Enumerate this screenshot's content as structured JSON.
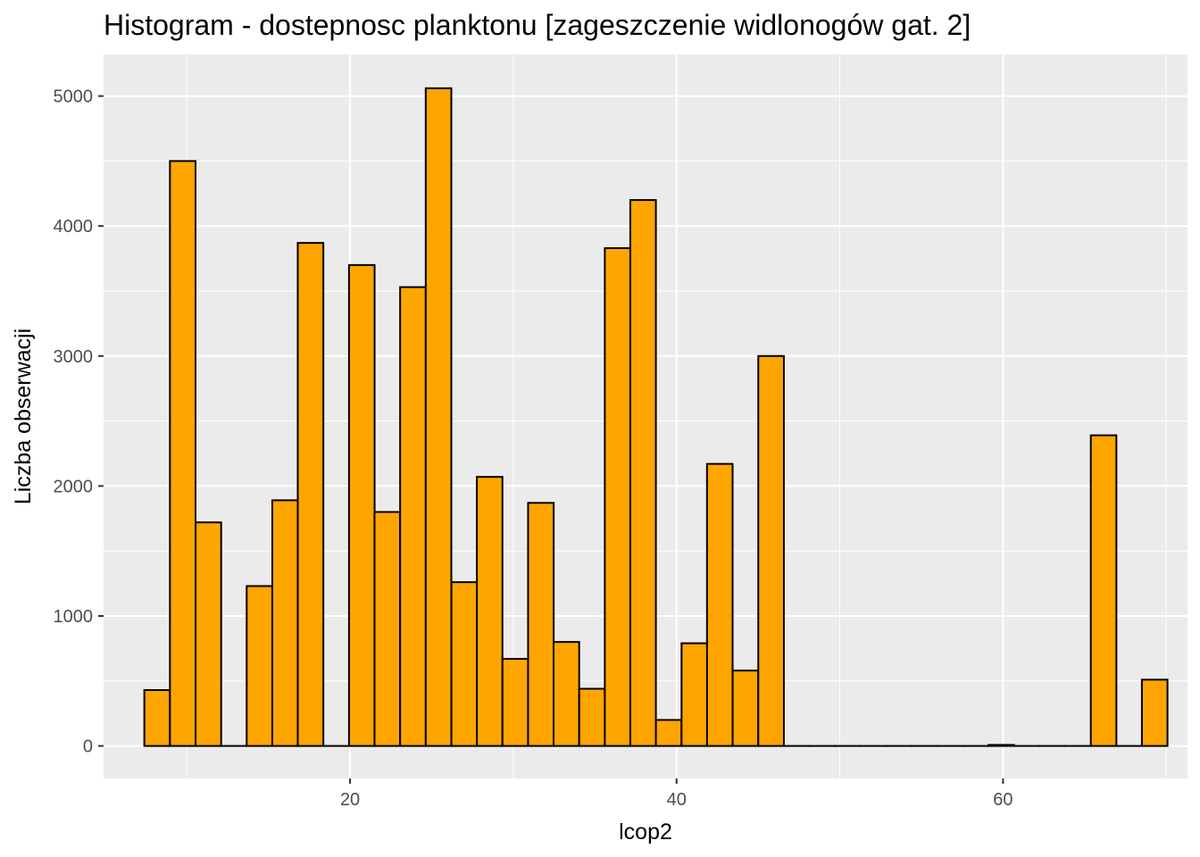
{
  "chart_data": {
    "type": "bar",
    "title": "Histogram - dostepnosc planktonu [zageszczenie widlonogów gat. 2]",
    "xlabel": "lcop2",
    "ylabel": "Liczba obserwacji",
    "xlim": [
      4.9,
      71.3
    ],
    "ylim": [
      -250,
      5320
    ],
    "x_ticks": [
      20,
      40,
      60
    ],
    "y_ticks": [
      0,
      1000,
      2000,
      3000,
      4000,
      5000
    ],
    "bin_width": 1.567,
    "bins": [
      {
        "x": 8.18,
        "count": 430
      },
      {
        "x": 9.75,
        "count": 4500
      },
      {
        "x": 11.32,
        "count": 1720
      },
      {
        "x": 12.88,
        "count": 0
      },
      {
        "x": 14.45,
        "count": 1230
      },
      {
        "x": 16.02,
        "count": 1890
      },
      {
        "x": 17.58,
        "count": 3870
      },
      {
        "x": 19.15,
        "count": 0
      },
      {
        "x": 20.72,
        "count": 3700
      },
      {
        "x": 22.28,
        "count": 1800
      },
      {
        "x": 23.85,
        "count": 3530
      },
      {
        "x": 25.42,
        "count": 5060
      },
      {
        "x": 26.99,
        "count": 1260
      },
      {
        "x": 28.55,
        "count": 2070
      },
      {
        "x": 30.12,
        "count": 670
      },
      {
        "x": 31.69,
        "count": 1870
      },
      {
        "x": 33.25,
        "count": 800
      },
      {
        "x": 34.82,
        "count": 440
      },
      {
        "x": 36.39,
        "count": 3830
      },
      {
        "x": 37.95,
        "count": 4200
      },
      {
        "x": 39.52,
        "count": 200
      },
      {
        "x": 41.09,
        "count": 790
      },
      {
        "x": 42.65,
        "count": 2170
      },
      {
        "x": 44.22,
        "count": 580
      },
      {
        "x": 45.79,
        "count": 3000
      },
      {
        "x": 47.36,
        "count": 0
      },
      {
        "x": 48.92,
        "count": 0
      },
      {
        "x": 50.49,
        "count": 0
      },
      {
        "x": 52.06,
        "count": 0
      },
      {
        "x": 53.62,
        "count": 0
      },
      {
        "x": 55.19,
        "count": 0
      },
      {
        "x": 56.76,
        "count": 0
      },
      {
        "x": 58.32,
        "count": 0
      },
      {
        "x": 59.89,
        "count": 8
      },
      {
        "x": 61.46,
        "count": 0
      },
      {
        "x": 63.02,
        "count": 0
      },
      {
        "x": 64.59,
        "count": 0
      },
      {
        "x": 66.16,
        "count": 2390
      },
      {
        "x": 67.73,
        "count": 0
      },
      {
        "x": 69.29,
        "count": 510
      }
    ],
    "bar_fill": "#FFA500",
    "bar_stroke": "#000000",
    "panel_background": "#EBEBEB",
    "gridline_color": "#FFFFFF",
    "grid": true,
    "legend": "none"
  }
}
